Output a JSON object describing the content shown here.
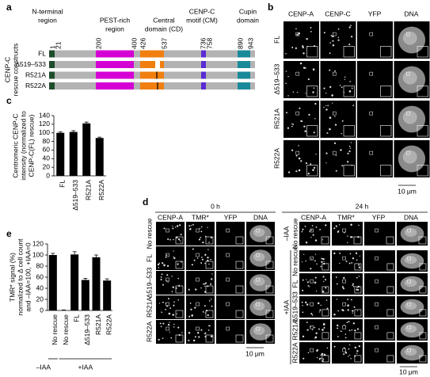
{
  "panel_a": {
    "label": "a",
    "domains": [
      [
        "N-terminal",
        "region"
      ],
      [
        "PEST-rich",
        "region"
      ],
      [
        "Central",
        "domain (CD)"
      ],
      [
        "CENP-C",
        "motif (CM)"
      ],
      [
        "Cupin",
        "domain"
      ]
    ],
    "residues": [
      1,
      21,
      200,
      400,
      426,
      537,
      736,
      758,
      890,
      943
    ],
    "axis_label": [
      "CENP-C",
      "rescue constructs"
    ],
    "constructs": [
      "FL",
      "Δ519–533",
      "R521A",
      "R522A"
    ]
  },
  "panel_b": {
    "label": "b",
    "channels": [
      "CENP-A",
      "CENP-C",
      "YFP",
      "DNA"
    ],
    "rows": [
      "FL",
      "Δ519–533",
      "R521A",
      "R522A"
    ],
    "scale_bar": "10 μm"
  },
  "panel_d": {
    "label": "d",
    "groups": [
      {
        "title": "0 h",
        "channels": [
          "CENP-A",
          "TMR*",
          "YFP",
          "DNA"
        ],
        "rows": [
          "No rescue",
          "FL",
          "Δ519–533",
          "R521A",
          "R522A"
        ],
        "scale_bar": "10 μm"
      },
      {
        "title": "24 h",
        "channels": [
          "CENP-A",
          "TMR*",
          "YFP",
          "DNA"
        ],
        "conditions": [
          "–IAA",
          "+IAA"
        ],
        "rows": [
          "No rescue",
          "No rescue",
          "FL",
          "Δ519–533",
          "R521A",
          "R522A"
        ],
        "scale_bar": "10 μm"
      }
    ]
  },
  "chart_data": [
    {
      "type": "bar",
      "label": "c",
      "ylabel": [
        "Centromeric CENP-C",
        "intensity (normalized to",
        "CENP-C(FL) rescue)"
      ],
      "categories": [
        "FL",
        "Δ519–533",
        "R521A",
        "R522A"
      ],
      "values": [
        100,
        102,
        122,
        88
      ],
      "errors": [
        2,
        3,
        3,
        2
      ],
      "color": "#000000",
      "ylim": [
        0,
        140
      ],
      "yticks": [
        0,
        20,
        40,
        60,
        80,
        100,
        120,
        140
      ]
    },
    {
      "type": "bar",
      "label": "e",
      "ylabel": [
        "TMR* signal (%)",
        "normalized to Δ cell count",
        "and –IAA=100, +IAA=0"
      ],
      "categories": [
        "No rescue",
        "No rescue",
        "FL",
        "Δ519–533",
        "R521A",
        "R522A"
      ],
      "values": [
        100,
        0,
        101,
        55,
        96,
        54
      ],
      "errors": [
        3,
        1,
        5,
        3,
        4,
        3
      ],
      "group_labels": [
        "–IAA",
        "+IAA"
      ],
      "color": "#000000",
      "ylim": [
        0,
        120
      ],
      "yticks": [
        0,
        20,
        40,
        60,
        80,
        100,
        120
      ]
    }
  ]
}
